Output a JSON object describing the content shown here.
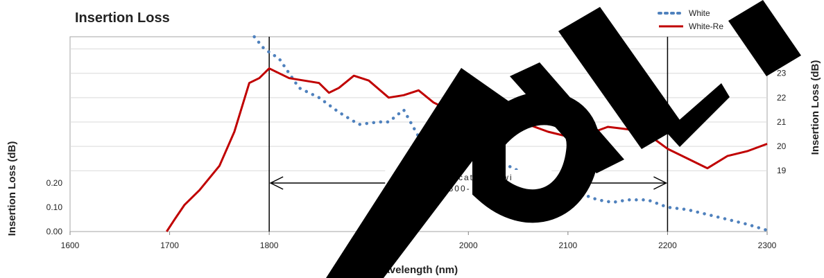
{
  "chart_data": {
    "type": "line",
    "title": "Insertion Loss",
    "xlabel": "Wavelength (nm)",
    "ylabel_left": "Insertion Loss (dB)",
    "ylabel_right": "Insertion Loss (dB)",
    "xlim": [
      1600,
      2300
    ],
    "ylim_left": [
      0,
      0.8
    ],
    "ylim_right": [
      16.5,
      24.5
    ],
    "x_ticks": [
      "1600",
      "1700",
      "1800",
      "1900",
      "2000",
      "2100",
      "2200",
      "2300"
    ],
    "y_left_ticks": [
      "0.00",
      "0.10",
      "0.20"
    ],
    "y_right_ticks": [
      "19",
      "20",
      "21",
      "22",
      "23"
    ],
    "grid": true,
    "legend_position": "top-right",
    "colors": {
      "white_series": "#4f81bd",
      "red_series": "#c00000"
    },
    "series": [
      {
        "name": "White",
        "axis": "left",
        "style": "dotted",
        "x": [
          1785,
          1795,
          1810,
          1830,
          1850,
          1870,
          1890,
          1910,
          1920,
          1935,
          1950,
          1970,
          1990,
          2010,
          2030,
          2050,
          2070,
          2090,
          2110,
          2130,
          2145,
          2160,
          2180,
          2200,
          2220,
          2240,
          2260,
          2280,
          2300
        ],
        "y": [
          0.8,
          0.75,
          0.71,
          0.59,
          0.55,
          0.49,
          0.44,
          0.45,
          0.45,
          0.5,
          0.39,
          0.32,
          0.35,
          0.33,
          0.29,
          0.25,
          0.23,
          0.2,
          0.16,
          0.13,
          0.12,
          0.13,
          0.13,
          0.1,
          0.09,
          0.07,
          0.05,
          0.03,
          0.005
        ]
      },
      {
        "name": "White-Re",
        "axis": "right",
        "style": "solid",
        "x": [
          1697,
          1705,
          1715,
          1730,
          1750,
          1765,
          1780,
          1790,
          1800,
          1810,
          1820,
          1835,
          1850,
          1860,
          1870,
          1885,
          1900,
          1920,
          1935,
          1950,
          1965,
          1975,
          1990,
          2000,
          2020,
          2040,
          2060,
          2080,
          2100,
          2120,
          2140,
          2160,
          2180,
          2200,
          2220,
          2240,
          2260,
          2280,
          2300
        ],
        "y": [
          16.5,
          17.0,
          17.6,
          18.2,
          19.2,
          20.6,
          22.6,
          22.8,
          23.2,
          23.0,
          22.8,
          22.7,
          22.6,
          22.2,
          22.4,
          22.9,
          22.7,
          22.0,
          22.1,
          22.3,
          21.8,
          21.6,
          21.0,
          21.5,
          21.2,
          21.0,
          20.9,
          20.6,
          20.4,
          20.5,
          20.8,
          20.7,
          20.5,
          19.9,
          19.5,
          19.1,
          19.6,
          19.8,
          20.1
        ]
      }
    ],
    "annotation": {
      "line1": "Specificat      Bandwi",
      "line2": "(1800-  2     nm",
      "x_start": 1800,
      "x_end": 2200
    }
  }
}
